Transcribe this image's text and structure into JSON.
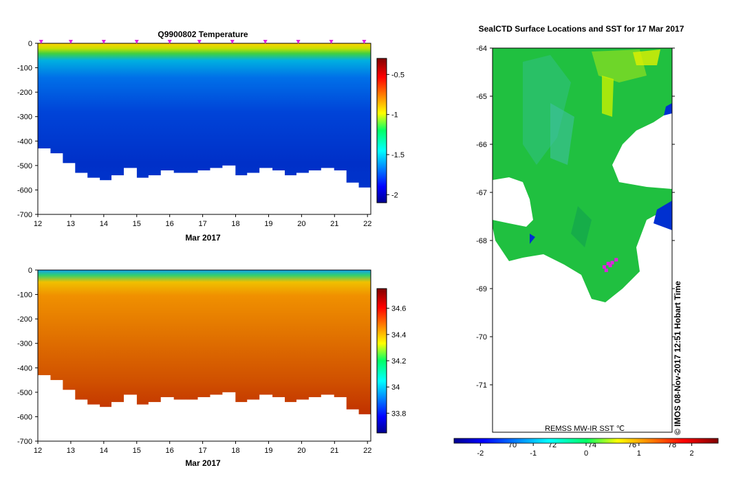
{
  "charts": {
    "temperature": {
      "title": "Q9900802  Temperature",
      "xlabel": "Mar 2017",
      "x_ticks": [
        "12",
        "13",
        "14",
        "15",
        "16",
        "17",
        "18",
        "19",
        "20",
        "21",
        "22"
      ],
      "y_ticks": [
        "0",
        "-100",
        "-200",
        "-300",
        "-400",
        "-500",
        "-600",
        "-700"
      ],
      "colorbar_ticks": [
        "-0.5",
        "-1",
        "-1.5",
        "-2"
      ]
    },
    "salinity": {
      "xlabel": "Mar 2017",
      "x_ticks": [
        "12",
        "13",
        "14",
        "15",
        "16",
        "17",
        "18",
        "19",
        "20",
        "21",
        "22"
      ],
      "y_ticks": [
        "0",
        "-100",
        "-200",
        "-300",
        "-400",
        "-500",
        "-600",
        "-700"
      ],
      "colorbar_ticks": [
        "34.6",
        "34.4",
        "34.2",
        "34",
        "33.8"
      ]
    },
    "map": {
      "title": "SealCTD Surface Locations and SST for 17 Mar 2017",
      "lat_ticks": [
        "-64",
        "-65",
        "-66",
        "-67",
        "-68",
        "-69",
        "-70",
        "-71"
      ],
      "lon_ticks": [
        "70",
        "72",
        "74",
        "76",
        "78"
      ],
      "source_label": "REMSS MW-IR SST ℃",
      "colorbar_ticks": [
        "-2",
        "-1",
        "0",
        "1",
        "2"
      ],
      "credit": "©  IMOS 08-Nov-2017 12:51 Hobart Time"
    }
  },
  "chart_data": [
    {
      "type": "heatmap",
      "name": "temperature-section",
      "title": "Q9900802  Temperature",
      "xlabel": "Mar 2017",
      "ylabel": "",
      "xlim": [
        12,
        22.1
      ],
      "ylim": [
        -700,
        0
      ],
      "clim": [
        -2.1,
        -0.3
      ],
      "profile_times": [
        12.1,
        13.0,
        14.0,
        15.0,
        16.0,
        16.9,
        17.9,
        18.9,
        19.9,
        20.9,
        21.9
      ],
      "profile_max_depths": [
        430,
        450,
        490,
        530,
        550,
        560,
        540,
        510,
        550,
        540,
        520,
        530,
        530,
        520,
        510,
        500,
        540,
        530,
        510,
        520,
        540,
        530,
        520,
        510,
        520,
        570,
        590
      ],
      "layers": [
        {
          "depth": 10,
          "value": -0.45
        },
        {
          "depth": 40,
          "value": -1.2
        },
        {
          "depth": 80,
          "value": -1.55
        },
        {
          "depth": 150,
          "value": -1.8
        },
        {
          "depth": 300,
          "value": -1.95
        },
        {
          "depth": 450,
          "value": -2.0
        },
        {
          "depth": 550,
          "value": -1.9
        }
      ]
    },
    {
      "type": "heatmap",
      "name": "salinity-section",
      "title": "",
      "xlabel": "Mar 2017",
      "ylabel": "",
      "xlim": [
        12,
        22.1
      ],
      "ylim": [
        -700,
        0
      ],
      "clim": [
        33.65,
        34.75
      ],
      "profile_max_depths": [
        430,
        450,
        490,
        530,
        550,
        560,
        540,
        510,
        550,
        540,
        520,
        530,
        530,
        520,
        510,
        500,
        540,
        530,
        510,
        520,
        540,
        530,
        520,
        510,
        520,
        570,
        590
      ],
      "layers": [
        {
          "depth": 5,
          "value": 33.8
        },
        {
          "depth": 30,
          "value": 34.05
        },
        {
          "depth": 80,
          "value": 34.5
        },
        {
          "depth": 250,
          "value": 34.62
        },
        {
          "depth": 450,
          "value": 34.68
        },
        {
          "depth": 600,
          "value": 34.7
        }
      ]
    },
    {
      "type": "heatmap",
      "name": "sst-map",
      "title": "SealCTD Surface Locations and SST for 17 Mar 2017",
      "lat_range": [
        -72,
        -64
      ],
      "lon_range": [
        69,
        78
      ],
      "clim": [
        -2.5,
        2.5
      ],
      "typical_sst": -0.5,
      "seal_positions": [
        {
          "lat": -68.48,
          "lon": 74.8
        },
        {
          "lat": -68.52,
          "lon": 74.9
        },
        {
          "lat": -68.55,
          "lon": 74.6
        },
        {
          "lat": -68.62,
          "lon": 74.7
        },
        {
          "lat": -68.46,
          "lon": 75.0
        },
        {
          "lat": -68.4,
          "lon": 75.2
        }
      ]
    }
  ]
}
